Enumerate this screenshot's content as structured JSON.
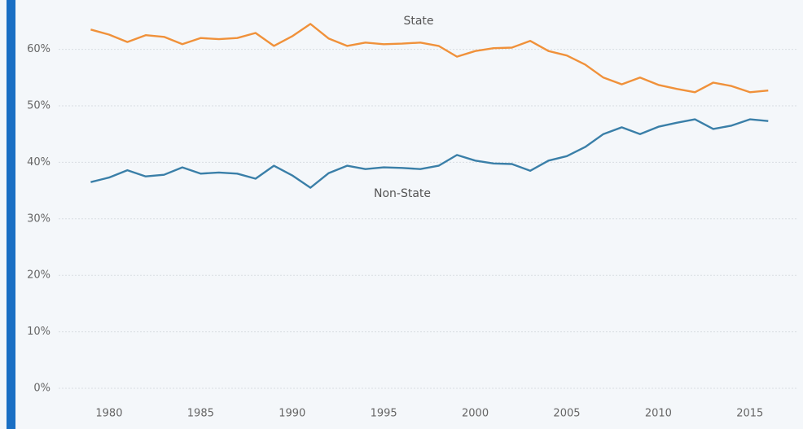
{
  "chart_data": {
    "type": "line",
    "x": [
      1979,
      1980,
      1981,
      1982,
      1983,
      1984,
      1985,
      1986,
      1987,
      1988,
      1989,
      1990,
      1991,
      1992,
      1993,
      1994,
      1995,
      1996,
      1997,
      1998,
      1999,
      2000,
      2001,
      2002,
      2003,
      2004,
      2005,
      2006,
      2007,
      2008,
      2009,
      2010,
      2011,
      2012,
      2013,
      2014,
      2015,
      2016
    ],
    "series": [
      {
        "name": "State",
        "color": "#f0913a",
        "values": [
          63.5,
          62.6,
          61.3,
          62.5,
          62.2,
          60.9,
          62.0,
          61.8,
          62.0,
          62.9,
          60.6,
          62.3,
          64.5,
          61.9,
          60.6,
          61.2,
          60.9,
          61.0,
          61.2,
          60.6,
          58.7,
          59.7,
          60.2,
          60.3,
          61.5,
          59.7,
          58.9,
          57.3,
          55.0,
          53.8,
          55.0,
          53.7,
          53.0,
          52.4,
          54.1,
          53.5,
          52.4,
          52.7
        ]
      },
      {
        "name": "Non-State",
        "color": "#3a7fa8",
        "values": [
          36.5,
          37.3,
          38.6,
          37.5,
          37.8,
          39.1,
          38.0,
          38.2,
          38.0,
          37.1,
          39.4,
          37.7,
          35.5,
          38.1,
          39.4,
          38.8,
          39.1,
          39.0,
          38.8,
          39.4,
          41.3,
          40.3,
          39.8,
          39.7,
          38.5,
          40.3,
          41.1,
          42.7,
          45.0,
          46.2,
          45.0,
          46.3,
          47.0,
          47.6,
          45.9,
          46.5,
          47.6,
          47.3
        ]
      }
    ],
    "xlim": [
      1976,
      2017.5
    ],
    "xticks": [
      1980,
      1985,
      1990,
      1995,
      2000,
      2005,
      2010,
      2015
    ],
    "ylim": [
      0,
      67
    ],
    "yticks": [
      {
        "value": 0,
        "label": "0%"
      },
      {
        "value": 10,
        "label": "10%"
      },
      {
        "value": 20,
        "label": "20%"
      },
      {
        "value": 30,
        "label": "30%"
      },
      {
        "value": 40,
        "label": "40%"
      },
      {
        "value": 50,
        "label": "50%"
      },
      {
        "value": 60,
        "label": "60%"
      }
    ],
    "grid": true
  }
}
